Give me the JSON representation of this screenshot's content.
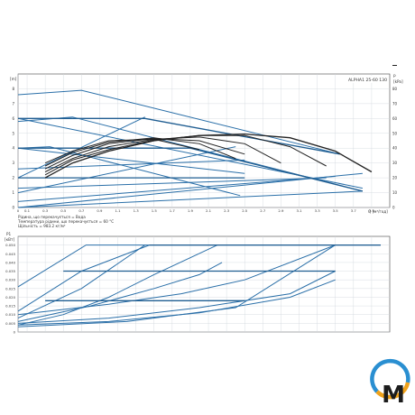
{
  "top_dash": "–",
  "chart_data": [
    {
      "type": "line",
      "title": "ALPHA1 25-60 130",
      "ylabel_left": "[m]",
      "ylabel_right_top": "p",
      "ylabel_right_unit": "[kPa]",
      "xlabel": "Q [м³/год]",
      "x_ticks": [
        "0",
        "0.1",
        "0.3",
        "0.5",
        "0.7",
        "0.9",
        "1.1",
        "1.3",
        "1.5",
        "1.7",
        "1.9",
        "2.1",
        "2.3",
        "2.5",
        "2.7",
        "2.9",
        "3.1",
        "3.3",
        "3.5",
        "3.7",
        "3.9"
      ],
      "y_ticks_left": [
        "0",
        "1",
        "2",
        "3",
        "4",
        "5",
        "6",
        "7",
        "8"
      ],
      "y_ticks_right": [
        "0",
        "10",
        "20",
        "30",
        "40",
        "50",
        "60",
        "70",
        "80"
      ],
      "xlim": [
        0,
        4.1
      ],
      "ylim": [
        0,
        9
      ],
      "grid": true,
      "notes": [
        "Рідина, що перекачується = Вода",
        "Температура рідини, що перекачується = 60 °C",
        "Щільність = 983.2 кг/м³"
      ],
      "series": [
        {
          "color": "#2a6fa8",
          "width": 1.0,
          "x": [
            0,
            0.7,
            3.55
          ],
          "y": [
            7.6,
            7.9,
            3.6
          ]
        },
        {
          "color": "#2a6fa8",
          "width": 1.0,
          "x": [
            0,
            0.6,
            3.8
          ],
          "y": [
            5.8,
            6.1,
            1.1
          ]
        },
        {
          "color": "#2a6fa8",
          "width": 1.0,
          "x": [
            0,
            0.35,
            2.45
          ],
          "y": [
            4.0,
            4.1,
            0.8
          ]
        },
        {
          "color": "#2a6fa8",
          "width": 1.0,
          "x": [
            0,
            3.8
          ],
          "y": [
            6.0,
            1.3
          ]
        },
        {
          "color": "#2a6fa8",
          "width": 1.0,
          "x": [
            0,
            2.5
          ],
          "y": [
            4.0,
            2.3
          ]
        },
        {
          "color": "#2a6fa8",
          "width": 1.0,
          "x": [
            0,
            1.4
          ],
          "y": [
            2.0,
            6.1
          ]
        },
        {
          "color": "#2a6fa8",
          "width": 1.0,
          "x": [
            0,
            2.4
          ],
          "y": [
            1.0,
            4.1
          ]
        },
        {
          "color": "#2a6fa8",
          "width": 1.0,
          "x": [
            0,
            3.8
          ],
          "y": [
            0,
            2.3
          ]
        },
        {
          "color": "#2a6fa8",
          "width": 1.0,
          "x": [
            0,
            3.8
          ],
          "y": [
            0,
            1.1
          ]
        },
        {
          "color": "#2a6fa8",
          "width": 1.0,
          "x": [
            0,
            3.5
          ],
          "y": [
            0.4,
            2.1
          ]
        },
        {
          "color": "#2a6fa8",
          "width": 1.0,
          "x": [
            0,
            3.4
          ],
          "y": [
            1.3,
            2.0
          ]
        },
        {
          "color": "#2a6fa8",
          "width": 1.0,
          "x": [
            0,
            2.5
          ],
          "y": [
            2.6,
            3.2
          ]
        },
        {
          "color": "#1f5d91",
          "width": 1.3,
          "x": [
            0,
            1.4,
            3.55
          ],
          "y": [
            6.0,
            6.0,
            3.6
          ]
        },
        {
          "color": "#1f5d91",
          "width": 1.3,
          "x": [
            0,
            0.7,
            1.9,
            3.8
          ],
          "y": [
            4.0,
            4.0,
            4.0,
            1.1
          ]
        },
        {
          "color": "#1f5d91",
          "width": 1.3,
          "x": [
            0,
            2.5
          ],
          "y": [
            2.0,
            2.0
          ]
        },
        {
          "color": "#222222",
          "width": 1.3,
          "x": [
            0.3,
            0.6,
            1.0,
            1.5,
            2.0,
            2.5,
            3.0,
            3.5,
            3.9
          ],
          "y": [
            2.0,
            3.0,
            3.8,
            4.5,
            4.85,
            4.95,
            4.7,
            3.8,
            2.4
          ]
        },
        {
          "color": "#222222",
          "width": 1.0,
          "x": [
            0.3,
            0.6,
            1.0,
            1.5,
            2.0,
            2.5,
            3.0,
            3.4
          ],
          "y": [
            2.2,
            3.2,
            3.9,
            4.55,
            4.85,
            4.85,
            4.1,
            2.8
          ]
        },
        {
          "color": "#222222",
          "width": 1.0,
          "x": [
            0.3,
            0.6,
            1.0,
            1.5,
            2.0,
            2.5,
            2.9
          ],
          "y": [
            2.4,
            3.3,
            4.1,
            4.6,
            4.75,
            4.3,
            3.0
          ]
        },
        {
          "color": "#222222",
          "width": 1.0,
          "x": [
            0.3,
            0.6,
            1.0,
            1.5,
            2.0,
            2.5
          ],
          "y": [
            2.6,
            3.5,
            4.3,
            4.65,
            4.5,
            3.6
          ]
        },
        {
          "color": "#222222",
          "width": 1.0,
          "x": [
            0.3,
            0.6,
            1.0,
            1.5,
            2.0,
            2.4
          ],
          "y": [
            2.8,
            3.7,
            4.4,
            4.7,
            4.3,
            3.3
          ]
        },
        {
          "color": "#222222",
          "width": 1.0,
          "x": [
            0.3,
            0.6,
            1.0,
            1.5,
            2.0
          ],
          "y": [
            3.0,
            3.8,
            4.5,
            4.6,
            3.9
          ]
        }
      ]
    },
    {
      "type": "line",
      "ylabel_left": "P1",
      "ylabel_unit": "[кВт]",
      "y_ticks_left": [
        "0",
        "0.005",
        "0.010",
        "0.015",
        "0.020",
        "0.025",
        "0.030",
        "0.035",
        "0.040",
        "0.045",
        "0.050"
      ],
      "xlim": [
        0,
        4.1
      ],
      "ylim": [
        0,
        0.055
      ],
      "grid": true,
      "series": [
        {
          "color": "#2a6fa8",
          "width": 1.0,
          "x": [
            0,
            0.75,
            4.0
          ],
          "y": [
            0.026,
            0.05,
            0.05
          ]
        },
        {
          "color": "#2a6fa8",
          "width": 1.0,
          "x": [
            0,
            0.7,
            1.45
          ],
          "y": [
            0.012,
            0.035,
            0.05
          ]
        },
        {
          "color": "#2a6fa8",
          "width": 1.0,
          "x": [
            0,
            0.7,
            1.4
          ],
          "y": [
            0.008,
            0.025,
            0.05
          ]
        },
        {
          "color": "#2a6fa8",
          "width": 1.0,
          "x": [
            0,
            0.5,
            1.0,
            1.5,
            2.2
          ],
          "y": [
            0.004,
            0.01,
            0.02,
            0.033,
            0.05
          ]
        },
        {
          "color": "#2a6fa8",
          "width": 1.0,
          "x": [
            0,
            0.8,
            1.5,
            2.0,
            2.25
          ],
          "y": [
            0.006,
            0.015,
            0.025,
            0.033,
            0.04
          ]
        },
        {
          "color": "#2a6fa8",
          "width": 1.0,
          "x": [
            0,
            1.0,
            1.8,
            2.5,
            3.5
          ],
          "y": [
            0.01,
            0.016,
            0.022,
            0.03,
            0.05
          ]
        },
        {
          "color": "#2a6fa8",
          "width": 1.0,
          "x": [
            0,
            1.0,
            2.0,
            3.0,
            3.5
          ],
          "y": [
            0.005,
            0.008,
            0.014,
            0.022,
            0.035
          ]
        },
        {
          "color": "#2a6fa8",
          "width": 1.0,
          "x": [
            0,
            1.0,
            2.0,
            3.0,
            3.5
          ],
          "y": [
            0.004,
            0.006,
            0.011,
            0.02,
            0.03
          ]
        },
        {
          "color": "#2a6fa8",
          "width": 1.0,
          "x": [
            0,
            1.2,
            2.4,
            3.5
          ],
          "y": [
            0.003,
            0.006,
            0.014,
            0.05
          ]
        },
        {
          "color": "#1f5d91",
          "width": 1.3,
          "x": [
            0.5,
            3.5
          ],
          "y": [
            0.035,
            0.035
          ]
        },
        {
          "color": "#1f5d91",
          "width": 1.3,
          "x": [
            0.3,
            2.5
          ],
          "y": [
            0.018,
            0.018
          ]
        },
        {
          "color": "#1f5d91",
          "width": 1.3,
          "x": [
            1.45,
            4.0
          ],
          "y": [
            0.05,
            0.05
          ]
        }
      ]
    }
  ],
  "logo": {
    "letter": "M",
    "ring_color": "#2a8fd1",
    "accent_color": "#f0a21b",
    "letter_color": "#1c1c1c"
  }
}
